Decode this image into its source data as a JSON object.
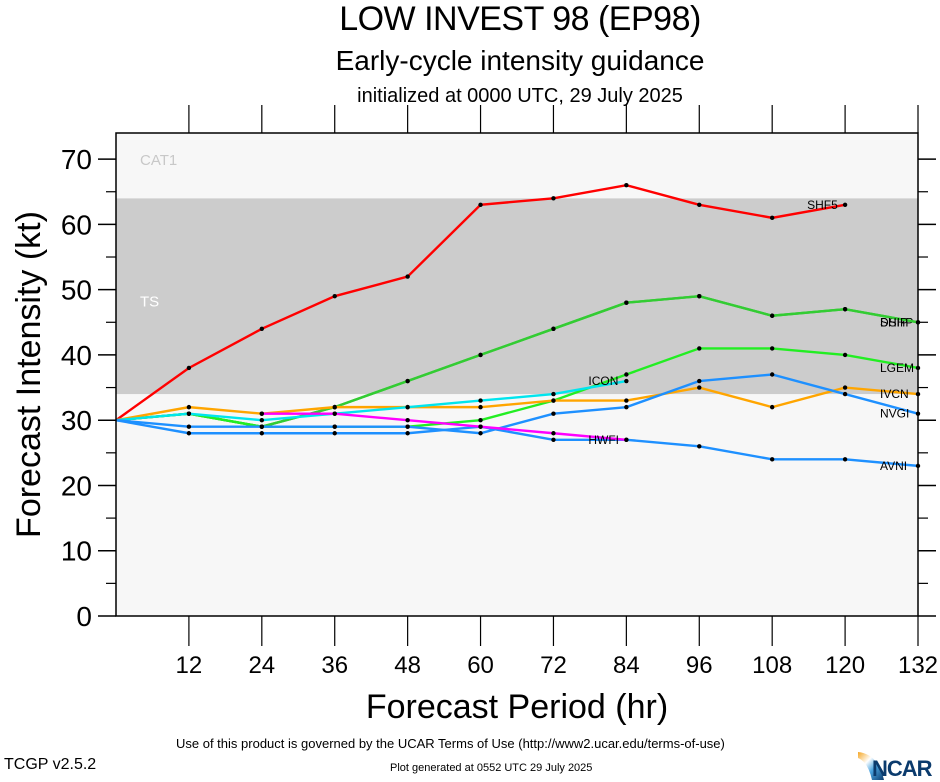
{
  "header": {
    "title": "LOW INVEST 98 (EP98)",
    "subtitle": "Early-cycle intensity guidance",
    "init": "initialized at 0000 UTC, 29 July 2025"
  },
  "footer": {
    "terms": "Use of this product is governed by the UCAR Terms of Use (http://www2.ucar.edu/terms-of-use)",
    "generated": "Plot generated at 0552 UTC   29 July 2025",
    "version": "TCGP v2.5.2",
    "logo": "NCAR"
  },
  "chart_data": {
    "type": "line",
    "title": "LOW INVEST 98 (EP98)",
    "xlabel": "Forecast Period (hr)",
    "ylabel": "Forecast Intensity (kt)",
    "xlim": [
      0,
      132
    ],
    "ylim": [
      0,
      74
    ],
    "xticks": [
      12,
      24,
      36,
      48,
      60,
      72,
      84,
      96,
      108,
      120,
      132
    ],
    "yticks": [
      0,
      10,
      20,
      30,
      40,
      50,
      60,
      70
    ],
    "bands": [
      {
        "label": "TS",
        "from": 34,
        "to": 64,
        "color": "#cccccc",
        "label_color": "#ffffff"
      },
      {
        "label": "CAT1",
        "from": 64,
        "to": 74,
        "color": "#f7f7f7",
        "label_color": "#c8c8c8"
      }
    ],
    "background_color": "#f7f7f7",
    "series": [
      {
        "name": "SHF5",
        "color": "#ff0000",
        "x": [
          0,
          12,
          24,
          36,
          48,
          60,
          72,
          84,
          96,
          108,
          120
        ],
        "y": [
          30,
          38,
          44,
          49,
          52,
          63,
          64,
          66,
          63,
          61,
          63
        ]
      },
      {
        "name": "DSHP",
        "color": "#33cc33",
        "x": [
          0,
          12,
          24,
          36,
          48,
          60,
          72,
          84,
          96,
          108,
          120,
          132
        ],
        "y": [
          30,
          31,
          29,
          32,
          36,
          40,
          44,
          48,
          49,
          46,
          47,
          45
        ]
      },
      {
        "name": "SHIP",
        "color": "#33cc33",
        "x": [
          0,
          12,
          24,
          36,
          48,
          60,
          72,
          84,
          96,
          108,
          120,
          132
        ],
        "y": [
          30,
          31,
          29,
          32,
          36,
          40,
          44,
          48,
          49,
          46,
          47,
          45
        ]
      },
      {
        "name": "LGEM",
        "color": "#22ee22",
        "x": [
          0,
          12,
          24,
          36,
          48,
          60,
          72,
          84,
          96,
          108,
          120,
          132
        ],
        "y": [
          30,
          31,
          29,
          29,
          29,
          30,
          33,
          37,
          41,
          41,
          40,
          38
        ]
      },
      {
        "name": "IVCN",
        "color": "#ffa500",
        "x": [
          0,
          12,
          24,
          36,
          48,
          60,
          72,
          84,
          96,
          108,
          120,
          132
        ],
        "y": [
          30,
          32,
          31,
          32,
          32,
          32,
          33,
          33,
          35,
          32,
          35,
          34
        ]
      },
      {
        "name": "ICON",
        "color": "#00e5ee",
        "x": [
          0,
          12,
          24,
          36,
          48,
          60,
          72,
          84
        ],
        "y": [
          30,
          31,
          30,
          31,
          32,
          33,
          34,
          36
        ]
      },
      {
        "name": "NVGI",
        "color": "#1e90ff",
        "x": [
          0,
          12,
          24,
          36,
          48,
          60,
          72,
          84,
          96,
          108,
          120,
          132
        ],
        "y": [
          30,
          29,
          29,
          29,
          29,
          28,
          31,
          32,
          36,
          37,
          34,
          31
        ]
      },
      {
        "name": "AVNI",
        "color": "#1e90ff",
        "x": [
          0,
          12,
          24,
          36,
          48,
          60,
          72,
          84,
          96,
          108,
          120,
          132
        ],
        "y": [
          30,
          28,
          28,
          28,
          28,
          29,
          27,
          27,
          26,
          24,
          24,
          23
        ]
      },
      {
        "name": "HWFI",
        "color": "#ff00ff",
        "x": [
          24,
          36,
          48,
          60,
          72,
          84
        ],
        "y": [
          31,
          31,
          30,
          29,
          28,
          27
        ]
      }
    ]
  }
}
